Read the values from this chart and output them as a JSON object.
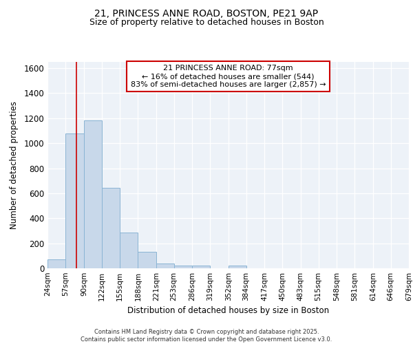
{
  "title_line1": "21, PRINCESS ANNE ROAD, BOSTON, PE21 9AP",
  "title_line2": "Size of property relative to detached houses in Boston",
  "xlabel": "Distribution of detached houses by size in Boston",
  "ylabel": "Number of detached properties",
  "bin_edges": [
    24,
    57,
    90,
    122,
    155,
    188,
    221,
    253,
    286,
    319,
    352,
    384,
    417,
    450,
    483,
    515,
    548,
    581,
    614,
    646,
    679
  ],
  "bar_heights": [
    70,
    1080,
    1180,
    645,
    285,
    130,
    40,
    20,
    20,
    0,
    20,
    0,
    0,
    0,
    0,
    0,
    0,
    0,
    0,
    0
  ],
  "bar_color": "#c8d8ea",
  "bar_edge_color": "#8ab4d4",
  "bar_edge_width": 0.7,
  "red_line_x": 77,
  "red_line_color": "#cc0000",
  "annotation_text": "21 PRINCESS ANNE ROAD: 77sqm\n← 16% of detached houses are smaller (544)\n83% of semi-detached houses are larger (2,857) →",
  "annotation_box_color": "#ffffff",
  "annotation_box_edge_color": "#cc0000",
  "ylim": [
    0,
    1650
  ],
  "yticks": [
    0,
    200,
    400,
    600,
    800,
    1000,
    1200,
    1400,
    1600
  ],
  "background_color": "#edf2f8",
  "grid_color": "#ffffff",
  "footnote": "Contains HM Land Registry data © Crown copyright and database right 2025.\nContains public sector information licensed under the Open Government Licence v3.0.",
  "tick_labels": [
    "24sqm",
    "57sqm",
    "90sqm",
    "122sqm",
    "155sqm",
    "188sqm",
    "221sqm",
    "253sqm",
    "286sqm",
    "319sqm",
    "352sqm",
    "384sqm",
    "417sqm",
    "450sqm",
    "483sqm",
    "515sqm",
    "548sqm",
    "581sqm",
    "614sqm",
    "646sqm",
    "679sqm"
  ]
}
